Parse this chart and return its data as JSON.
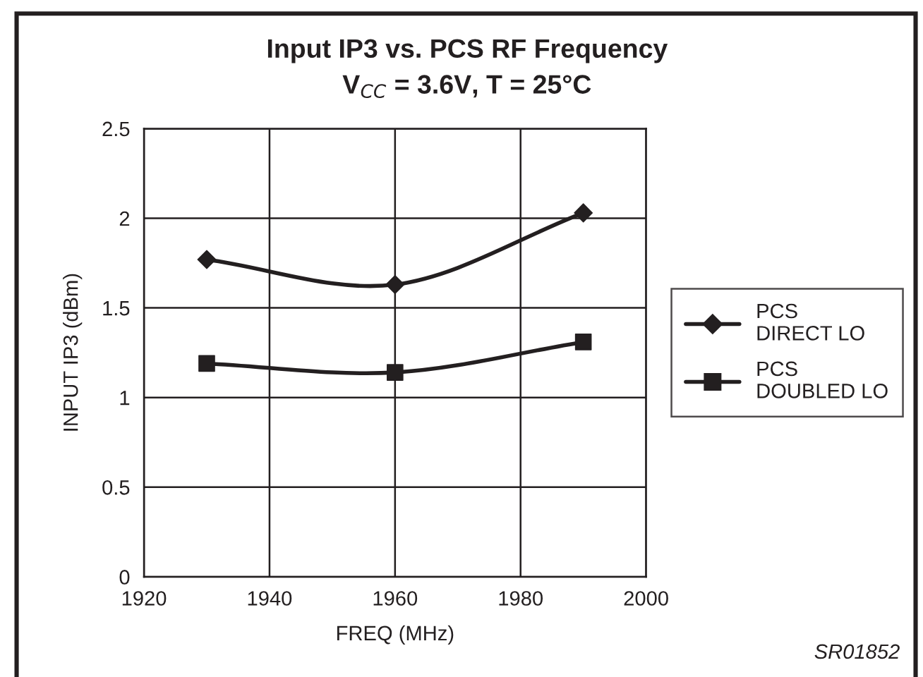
{
  "chart_data": {
    "type": "line",
    "title": "Input IP3 vs. PCS RF Frequency",
    "subtitle": "V$_{CC}$ = 3.6V, T = 25°C",
    "xlabel": "FREQ (MHz)",
    "ylabel": "INPUT IP3 (dBm)",
    "annotations": [
      "SR01852"
    ],
    "x": [
      1930,
      1960,
      1990
    ],
    "series": [
      {
        "name": "PCS\nDIRECT LO",
        "color": "#231f20",
        "marker": "diamond",
        "values": [
          1.77,
          1.63,
          2.03
        ]
      },
      {
        "name": "PCS\nDOUBLED LO",
        "color": "#231f20",
        "marker": "square",
        "values": [
          1.19,
          1.14,
          1.31
        ]
      }
    ],
    "xlim": [
      1920,
      2000
    ],
    "xticks": [
      1920,
      1940,
      1960,
      1980,
      2000
    ],
    "ylim": [
      0,
      2.5
    ],
    "yticks": [
      0,
      0.5,
      1,
      1.5,
      2,
      2.5
    ],
    "grid": true,
    "legend": "right",
    "line_style": "solid"
  }
}
